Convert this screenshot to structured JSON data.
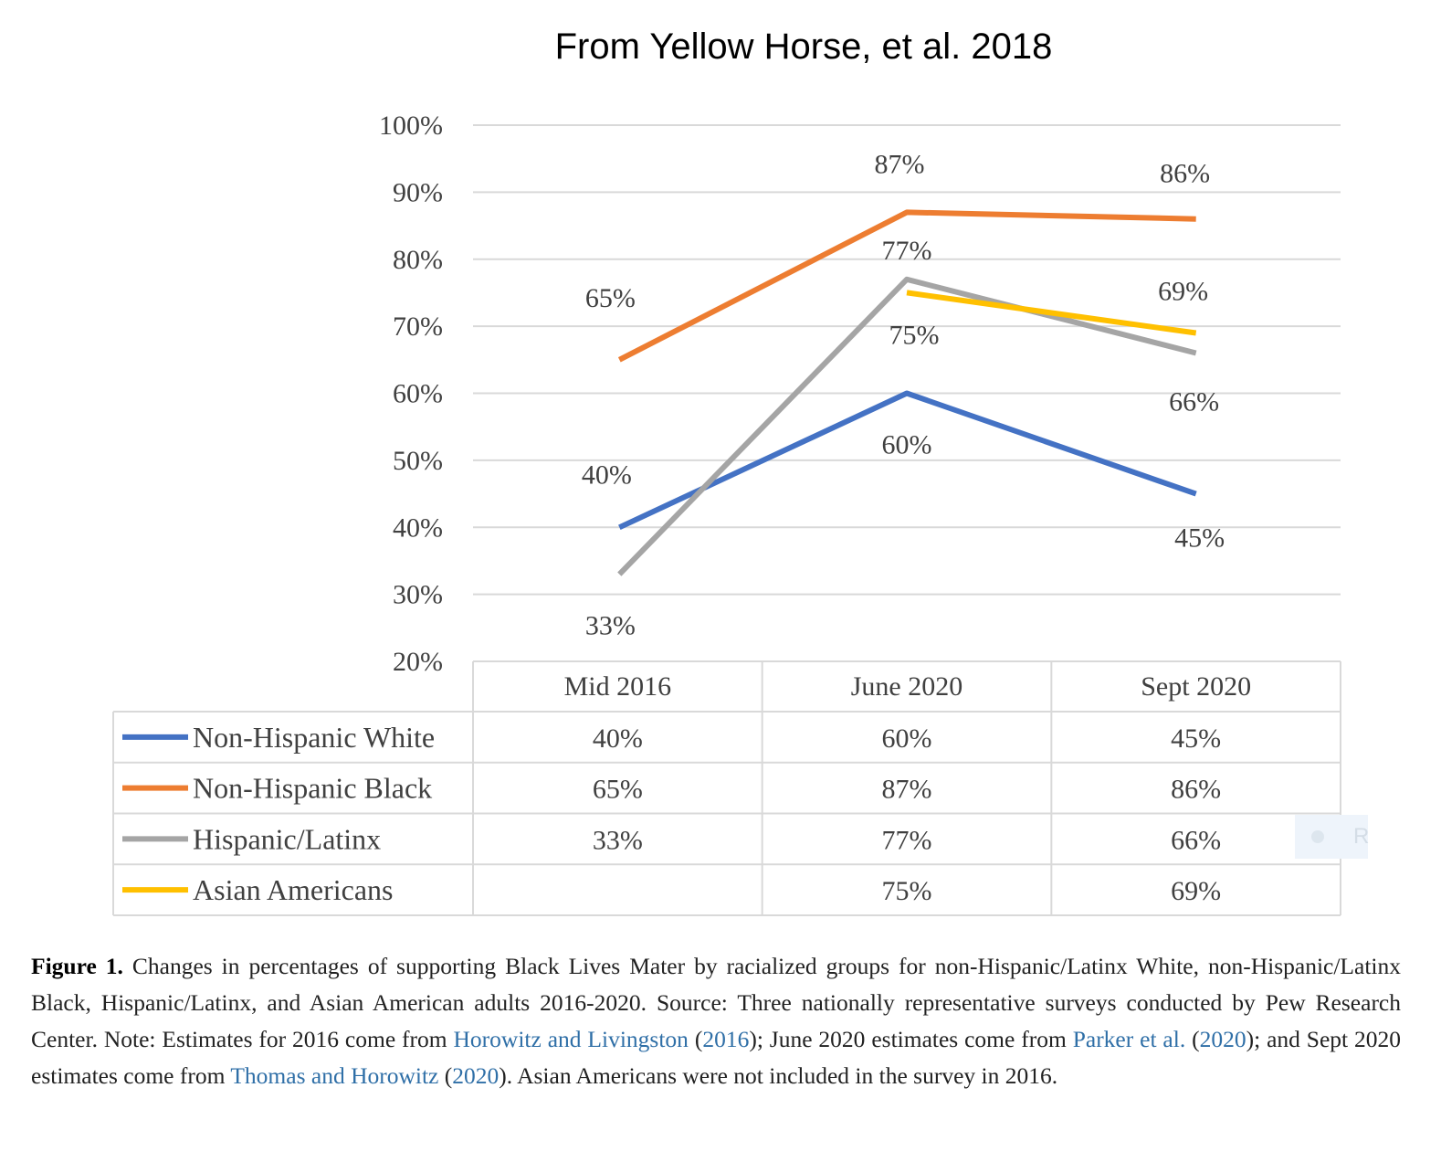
{
  "chart_data": {
    "type": "line",
    "title": "From Yellow Horse, et al. 2018",
    "categories": [
      "Mid 2016",
      "June 2020",
      "Sept 2020"
    ],
    "ylim": [
      20,
      100
    ],
    "yticks": [
      "100%",
      "90%",
      "80%",
      "70%",
      "60%",
      "50%",
      "40%",
      "30%",
      "20%"
    ],
    "grid": true,
    "legend": "data-table-below",
    "series": [
      {
        "name": "Non-Hispanic White",
        "color": "#4472c4",
        "values": [
          40,
          60,
          45
        ],
        "labels": [
          "40%",
          "60%",
          "45%"
        ]
      },
      {
        "name": "Non-Hispanic Black",
        "color": "#ed7d31",
        "values": [
          65,
          87,
          86
        ],
        "labels": [
          "65%",
          "87%",
          "86%"
        ]
      },
      {
        "name": "Hispanic/Latinx",
        "color": "#a5a5a5",
        "values": [
          33,
          77,
          66
        ],
        "labels": [
          "33%",
          "77%",
          "66%"
        ]
      },
      {
        "name": "Asian Americans",
        "color": "#ffc000",
        "values": [
          null,
          75,
          69
        ],
        "labels": [
          "",
          "75%",
          "69%"
        ]
      }
    ]
  },
  "caption": {
    "fig_label": "Figure 1.",
    "t1": " Changes in percentages of supporting Black Lives Mater by racialized groups for non-Hispanic/Latinx White, non-Hispanic/Latinx Black, Hispanic/Latinx, and Asian American adults 2016-2020. Source: Three nationally representative surveys conducted by Pew Research Center. Note: Estimates for 2016 come from ",
    "link1": "Horowitz and Livingston",
    "t2": " (",
    "link1_year": "2016",
    "t3": "); June 2020 estimates come from ",
    "link2": "Parker et al.",
    "t4": " (",
    "link2_year": "2020",
    "t5": "); and Sept 2020 estimates come from ",
    "link3": "Thomas and Horowitz",
    "t6": " (",
    "link3_year": "2020",
    "t7": "). Asian Americans were not included in the survey in 2016."
  },
  "watermark": {
    "text": "R"
  }
}
